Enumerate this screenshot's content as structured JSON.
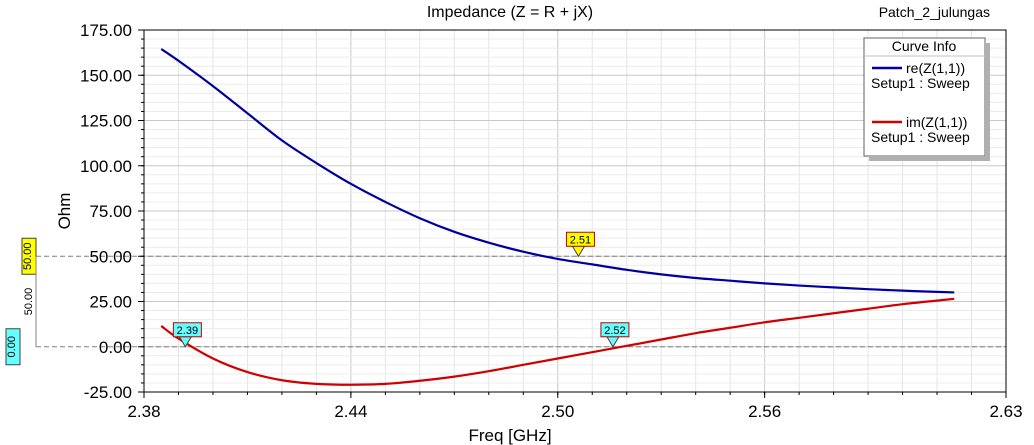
{
  "chart_data": {
    "type": "line",
    "title": "Impedance (Z = R + jX)",
    "project_label": "Patch_2_julungas",
    "xlabel": "Freq [GHz]",
    "ylabel": "Ohm",
    "xlim": [
      2.38,
      2.63
    ],
    "ylim": [
      -25,
      175
    ],
    "x_ticks": [
      "2.38",
      "2.44",
      "2.50",
      "2.56",
      "2.63"
    ],
    "x_tick_values": [
      2.38,
      2.44,
      2.5,
      2.56,
      2.63
    ],
    "y_ticks": [
      "175.00",
      "150.00",
      "125.00",
      "100.00",
      "75.00",
      "50.00",
      "25.00",
      "0.00",
      "-25.00"
    ],
    "y_tick_values": [
      175,
      150,
      125,
      100,
      75,
      50,
      25,
      0,
      -25
    ],
    "grid": true,
    "legend_position": "top-right",
    "legend_title": "Curve Info",
    "series": [
      {
        "name": "re(Z(1,1))",
        "sub": "Setup1 : Sweep",
        "color": "#0000a0",
        "x": [
          2.385,
          2.39,
          2.4,
          2.41,
          2.42,
          2.43,
          2.44,
          2.45,
          2.46,
          2.47,
          2.48,
          2.49,
          2.5,
          2.51,
          2.52,
          2.53,
          2.54,
          2.55,
          2.56,
          2.57,
          2.58,
          2.59,
          2.6,
          2.61,
          2.615
        ],
        "y": [
          164.5,
          158.0,
          144.0,
          129.0,
          114.0,
          101.5,
          90.0,
          80.0,
          71.0,
          63.5,
          57.5,
          52.5,
          48.5,
          45.5,
          42.5,
          40.0,
          38.0,
          36.5,
          35.0,
          33.8,
          32.8,
          31.8,
          31.0,
          30.3,
          30.0
        ]
      },
      {
        "name": "im(Z(1,1))",
        "sub": "Setup1 : Sweep",
        "color": "#d00000",
        "x": [
          2.385,
          2.39,
          2.4,
          2.41,
          2.42,
          2.43,
          2.44,
          2.45,
          2.46,
          2.47,
          2.48,
          2.49,
          2.5,
          2.51,
          2.52,
          2.53,
          2.54,
          2.55,
          2.56,
          2.57,
          2.58,
          2.59,
          2.6,
          2.61,
          2.615
        ],
        "y": [
          11.5,
          4.5,
          -6.5,
          -14.0,
          -18.5,
          -20.5,
          -21.0,
          -20.5,
          -18.8,
          -16.5,
          -13.5,
          -10.0,
          -6.5,
          -3.0,
          0.5,
          4.0,
          7.5,
          10.5,
          13.5,
          16.0,
          18.5,
          21.0,
          23.5,
          25.5,
          26.5
        ]
      }
    ],
    "reference_lines": [
      {
        "y": 50,
        "label": "50.00",
        "color": "#ffff00"
      },
      {
        "y": 0,
        "label": "0.00",
        "color": "#66ffff"
      }
    ],
    "side_annotation": "50.00",
    "markers": [
      {
        "x": 2.506,
        "y": 50.0,
        "label": "2.51",
        "color": "#ffff00"
      },
      {
        "x": 2.392,
        "y": 0.0,
        "label": "2.39",
        "color": "#66ffff"
      },
      {
        "x": 2.516,
        "y": 0.0,
        "label": "2.52",
        "color": "#66ffff"
      }
    ]
  }
}
